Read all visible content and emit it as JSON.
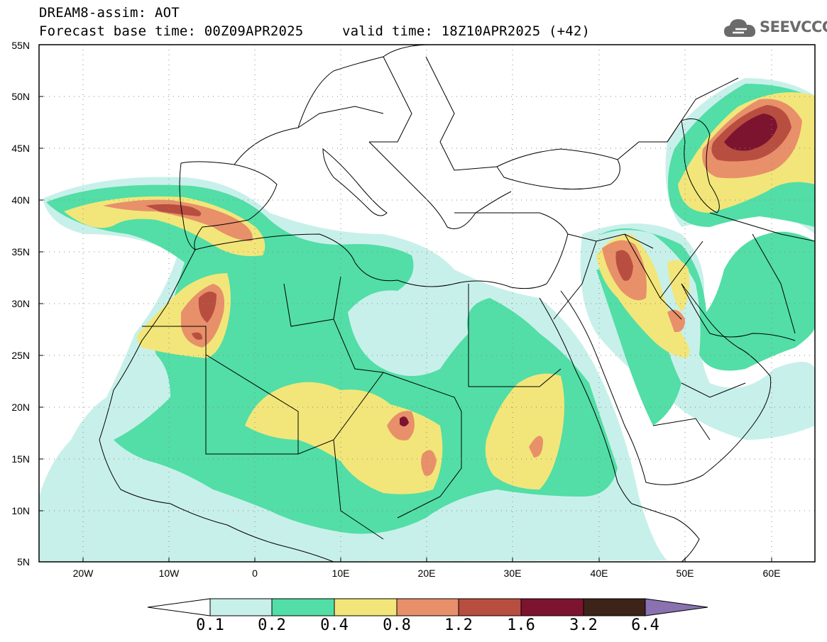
{
  "title": {
    "line1": "DREAM8-assim: AOT",
    "line2": "Forecast base time: 00Z09APR2025",
    "valid": "valid time: 18Z10APR2025 (+42)"
  },
  "logo": {
    "text": "SEEVCCC",
    "icon": "cloud-icon"
  },
  "map": {
    "lat_labels": [
      "55N",
      "50N",
      "45N",
      "40N",
      "35N",
      "30N",
      "25N",
      "20N",
      "15N",
      "10N",
      "5N"
    ],
    "lon_labels": [
      "20W",
      "10W",
      "0",
      "10E",
      "20E",
      "30E",
      "40E",
      "50E",
      "60E"
    ],
    "lon_range": [
      -25,
      65
    ],
    "lat_range": [
      5,
      55
    ],
    "gridlines": "dotted"
  },
  "colorbar": {
    "labels": [
      "0.1",
      "0.2",
      "0.4",
      "0.8",
      "1.2",
      "1.6",
      "3.2",
      "6.4"
    ],
    "colors": [
      "#c8f0ea",
      "#52dea6",
      "#f2e67a",
      "#e8906a",
      "#b84e40",
      "#7c1430",
      "#3d2418",
      "#8a72b0"
    ],
    "extend_low": "#ffffff",
    "extend_high": "#8a72b0"
  }
}
